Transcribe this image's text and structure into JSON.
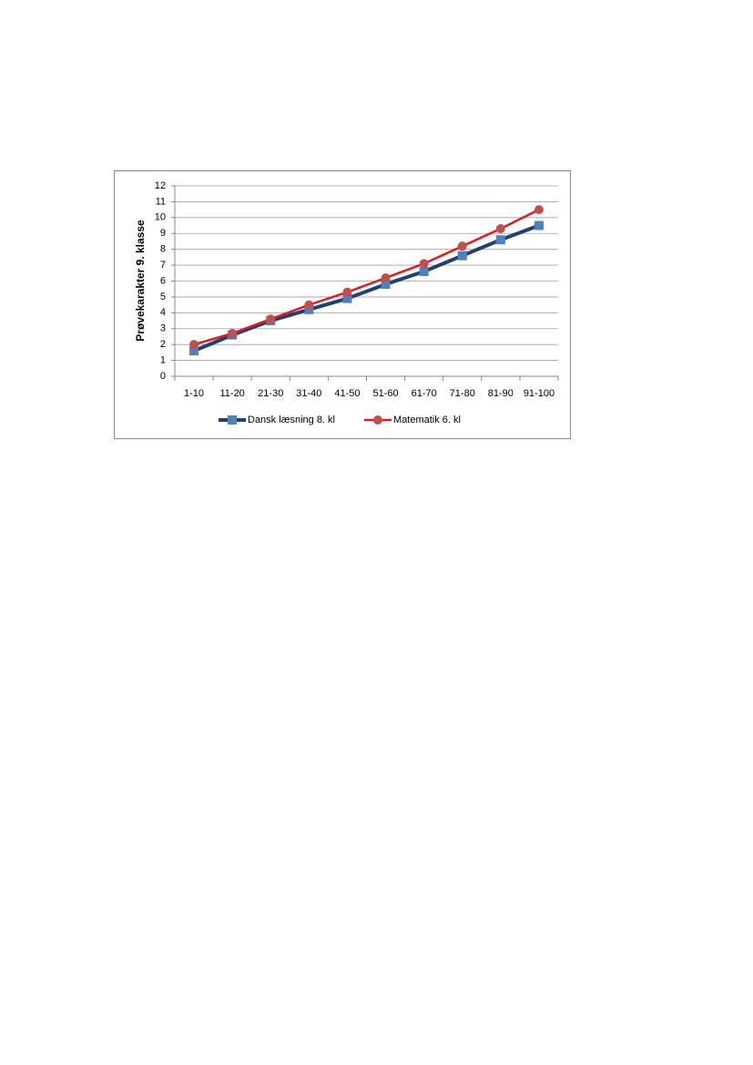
{
  "chart_data": {
    "type": "line",
    "y_label": "Prøvekarakter 9. klasse",
    "categories": [
      "1-10",
      "11-20",
      "21-30",
      "31-40",
      "41-50",
      "51-60",
      "61-70",
      "71-80",
      "81-90",
      "91-100"
    ],
    "series": [
      {
        "name": "Dansk læsning 8. kl",
        "color": "#1f3f77",
        "marker_color": "#4f81bd",
        "marker": "square",
        "values": [
          1.6,
          2.6,
          3.5,
          4.2,
          4.9,
          5.8,
          6.6,
          7.6,
          8.6,
          9.5
        ]
      },
      {
        "name": "Matematik 6. kl",
        "color": "#e31a1c",
        "marker_color": "#c0504d",
        "marker": "circle",
        "values": [
          2.0,
          2.7,
          3.6,
          4.5,
          5.3,
          6.2,
          7.1,
          8.2,
          9.3,
          10.5
        ]
      }
    ],
    "ylim": [
      0,
      12
    ],
    "yticks": [
      0,
      1,
      2,
      3,
      4,
      5,
      6,
      7,
      8,
      9,
      10,
      11,
      12
    ],
    "grid": true
  }
}
